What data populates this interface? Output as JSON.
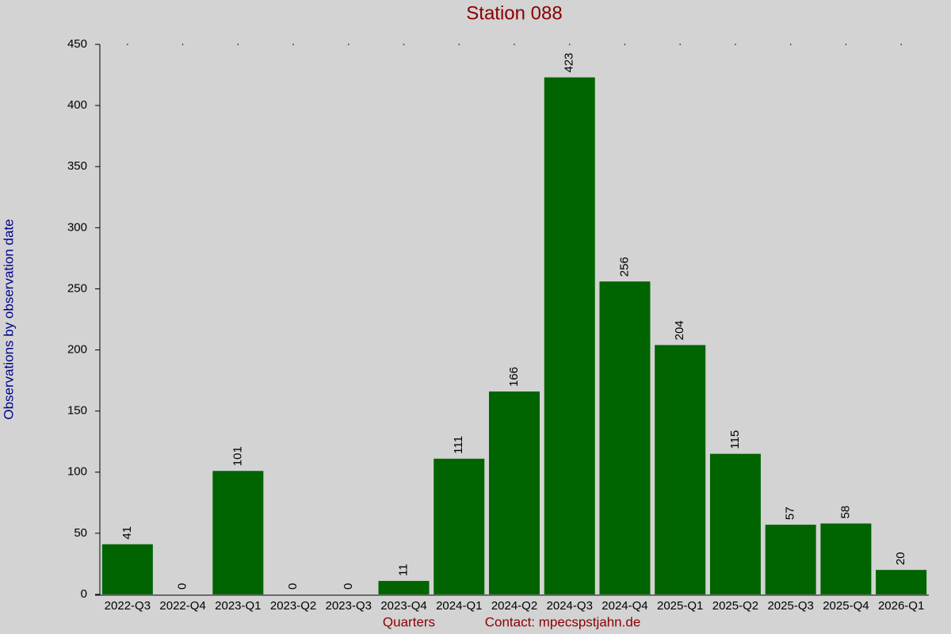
{
  "chart_data": {
    "type": "bar",
    "title": "Station 088",
    "x_label": "Quarters",
    "annotation": "Contact: mpecspstjahn.de",
    "y_label": "Observations by observation date",
    "categories": [
      "2022-Q3",
      "2022-Q4",
      "2023-Q1",
      "2023-Q2",
      "2023-Q3",
      "2023-Q4",
      "2024-Q1",
      "2024-Q2",
      "2024-Q3",
      "2024-Q4",
      "2025-Q1",
      "2025-Q2",
      "2025-Q3",
      "2025-Q4",
      "2026-Q1"
    ],
    "values": [
      41,
      0,
      101,
      0,
      0,
      11,
      111,
      166,
      423,
      256,
      204,
      115,
      57,
      58,
      20
    ],
    "color": "#006400",
    "ylim": [
      0,
      450
    ],
    "yticks": [
      0,
      50,
      100,
      150,
      200,
      250,
      300,
      350,
      400,
      450
    ]
  }
}
